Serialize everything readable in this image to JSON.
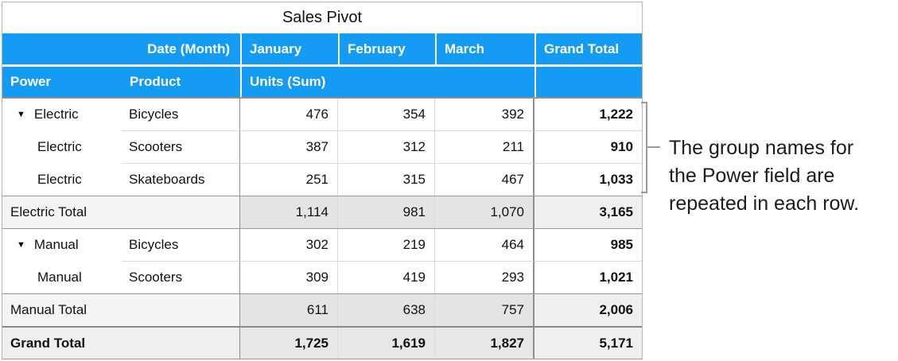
{
  "title": "Sales Pivot",
  "header": {
    "row_label_header": "Date (Month)",
    "columns": [
      "January",
      "February",
      "March",
      "Grand Total"
    ],
    "row_fields": [
      "Power",
      "Product"
    ],
    "values_header": "Units (Sum)"
  },
  "table": {
    "rows": [
      {
        "type": "data",
        "disclosure": true,
        "group_start": true,
        "separator": false,
        "power": "Electric",
        "product": "Bicycles",
        "values": [
          "476",
          "354",
          "392"
        ],
        "total": "1,222"
      },
      {
        "type": "data",
        "disclosure": false,
        "group_start": false,
        "separator": true,
        "power": "Electric",
        "product": "Scooters",
        "values": [
          "387",
          "312",
          "211"
        ],
        "total": "910"
      },
      {
        "type": "data",
        "disclosure": false,
        "group_start": false,
        "separator": true,
        "power": "Electric",
        "product": "Skateboards",
        "values": [
          "251",
          "315",
          "467"
        ],
        "total": "1,033"
      },
      {
        "type": "subtotal",
        "label": "Electric Total",
        "values": [
          "1,114",
          "981",
          "1,070"
        ],
        "total": "3,165"
      },
      {
        "type": "data",
        "disclosure": true,
        "group_start": true,
        "separator": false,
        "power": "Manual",
        "product": "Bicycles",
        "values": [
          "302",
          "219",
          "464"
        ],
        "total": "985"
      },
      {
        "type": "data",
        "disclosure": false,
        "group_start": false,
        "separator": true,
        "power": "Manual",
        "product": "Scooters",
        "values": [
          "309",
          "419",
          "293"
        ],
        "total": "1,021"
      },
      {
        "type": "subtotal",
        "label": "Manual Total",
        "values": [
          "611",
          "638",
          "757"
        ],
        "total": "2,006"
      },
      {
        "type": "grandtotal",
        "label": "Grand Total",
        "values": [
          "1,725",
          "1,619",
          "1,827"
        ],
        "total": "5,171"
      }
    ]
  },
  "annotation": {
    "lines": [
      "The group names for",
      "the Power field are",
      "repeated in each row."
    ]
  },
  "icons": {
    "disclosure_triangle": "▼"
  },
  "colors": {
    "header_blue": "#149bf4",
    "header_text": "#ffffff",
    "subtotal_value_bg": "#e4e4e4",
    "subtotal_label_bg": "#f4f4f4",
    "grand_total_bg": "#efefef",
    "grid_light": "#dcdcdc",
    "grid_dark": "#8e8e8e",
    "bracket_gray": "#9b9b9b"
  }
}
